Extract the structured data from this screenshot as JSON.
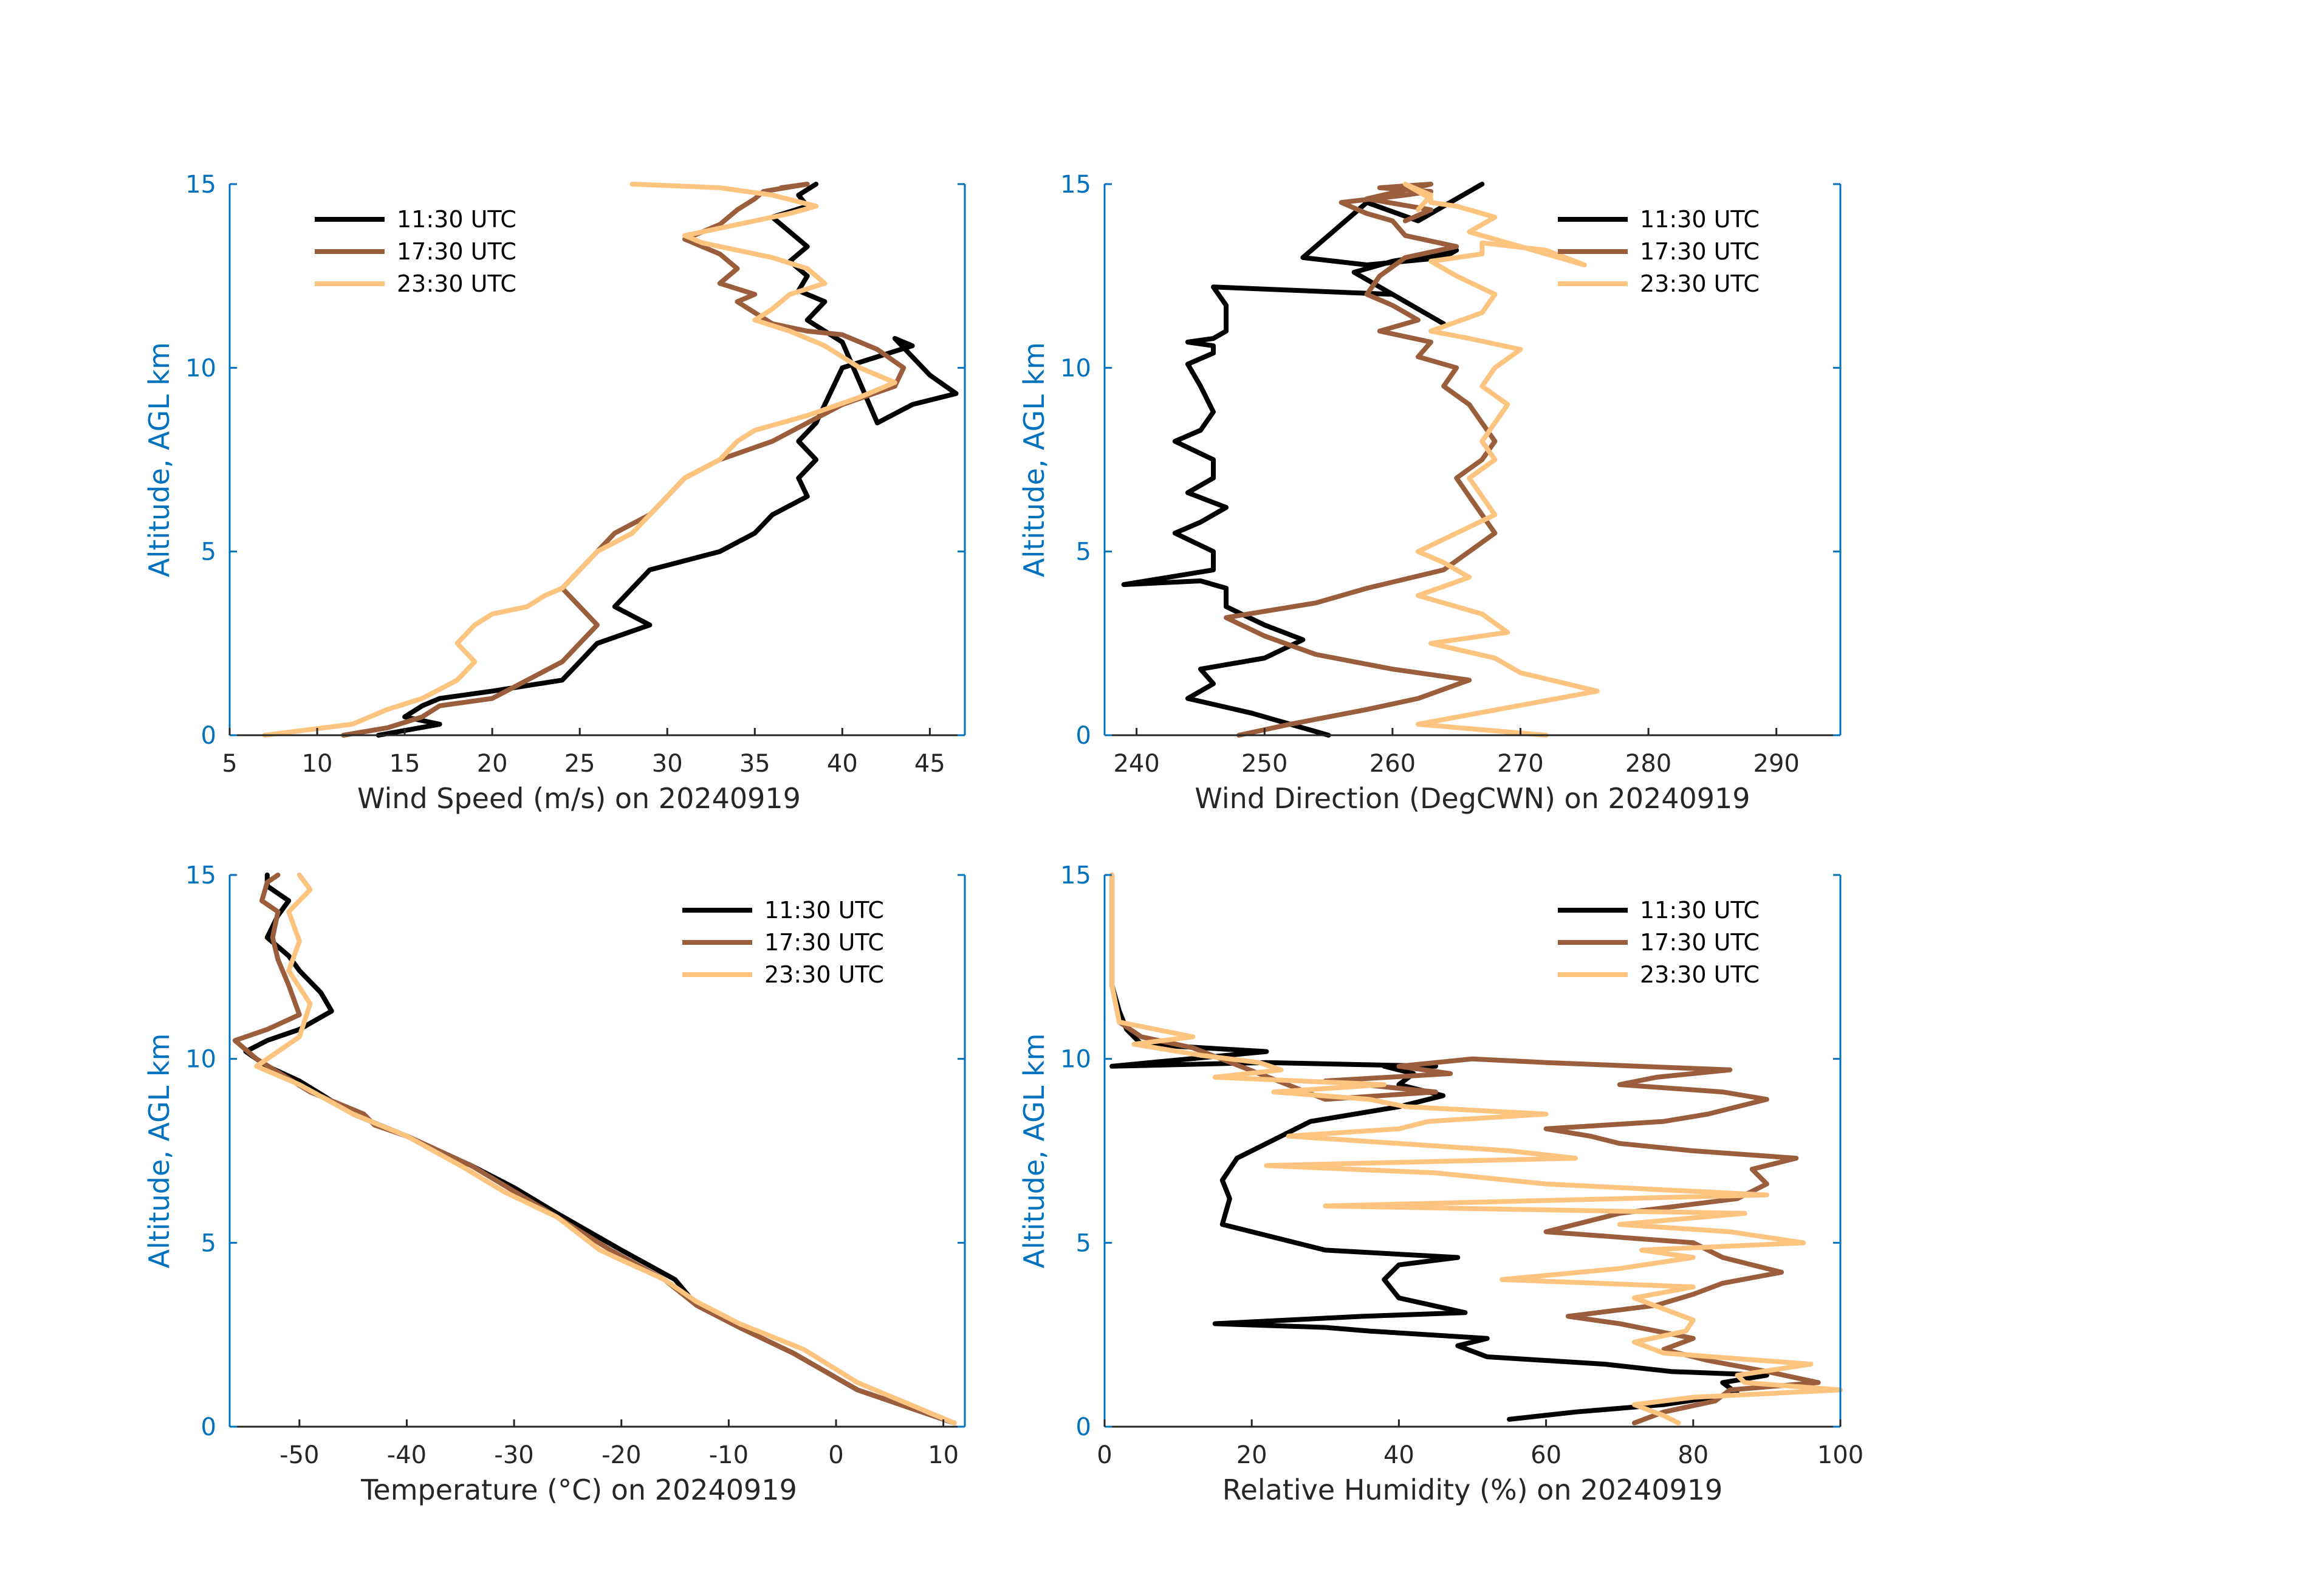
{
  "colors": {
    "s1": "#000000",
    "s2": "#9B5E3C",
    "s3": "#FCC47F",
    "axis": "#0072BD",
    "text": "#262626"
  },
  "chart_data": [
    {
      "type": "line",
      "title": "",
      "xlabel": "Wind Speed (m/s) on 20240919",
      "ylabel": "Altitude, AGL km",
      "xlim": [
        5,
        47
      ],
      "ylim": [
        0,
        15
      ],
      "xticks": [
        5,
        10,
        15,
        20,
        25,
        30,
        35,
        40,
        45
      ],
      "yticks": [
        0,
        5,
        10,
        15
      ],
      "legend": "top-left",
      "series": [
        {
          "name": "11:30 UTC",
          "x": [
            13.5,
            17,
            15,
            16,
            17,
            20,
            24,
            25,
            26,
            29,
            27,
            28,
            29,
            33,
            35,
            36,
            38,
            37.5,
            38.5,
            37.5,
            38.5,
            39,
            39.5,
            40,
            42,
            44,
            43,
            45,
            46.5,
            44,
            42,
            40,
            39,
            38,
            39,
            37.5,
            38,
            37,
            38,
            37,
            36,
            38,
            37.5,
            38.5
          ],
          "y": [
            0,
            0.3,
            0.5,
            0.8,
            1,
            1.2,
            1.5,
            2,
            2.5,
            3,
            3.5,
            4,
            4.5,
            5,
            5.5,
            6,
            6.5,
            7,
            7.5,
            8,
            8.5,
            9,
            9.5,
            10,
            10.3,
            10.6,
            10.8,
            9.8,
            9.3,
            9,
            8.5,
            10.7,
            11,
            11.3,
            11.8,
            12.1,
            12.5,
            12.9,
            13.3,
            13.7,
            14.1,
            14.4,
            14.7,
            15
          ]
        },
        {
          "name": "17:30 UTC",
          "x": [
            11.5,
            14,
            16,
            17,
            20,
            22,
            24,
            25,
            26,
            25,
            24,
            25,
            26,
            27,
            29,
            31,
            33,
            36,
            38,
            40,
            43,
            43.5,
            42,
            40,
            38,
            36,
            35,
            34,
            35,
            33,
            34,
            33,
            31,
            33,
            34,
            35,
            35.5,
            38,
            36.5
          ],
          "y": [
            0,
            0.2,
            0.5,
            0.8,
            1,
            1.5,
            2,
            2.5,
            3,
            3.5,
            4,
            4.5,
            5,
            5.5,
            6,
            7,
            7.5,
            8,
            8.5,
            9,
            9.5,
            10,
            10.5,
            10.9,
            11,
            11.2,
            11.5,
            11.8,
            12,
            12.3,
            12.7,
            13.1,
            13.5,
            13.9,
            14.3,
            14.6,
            14.8,
            15,
            14.9
          ]
        },
        {
          "name": "23:30 UTC",
          "x": [
            7,
            12,
            14,
            16,
            18,
            19,
            18,
            19,
            20,
            22,
            23,
            24,
            25,
            26,
            28,
            29,
            30,
            31,
            33,
            34,
            35,
            38,
            41,
            43,
            41,
            40,
            39,
            38,
            37,
            35,
            36,
            37,
            39,
            38,
            36,
            34,
            32,
            31,
            33,
            35,
            37,
            38.5,
            36,
            33,
            28
          ],
          "y": [
            0,
            0.3,
            0.7,
            1,
            1.5,
            2,
            2.5,
            3,
            3.3,
            3.5,
            3.8,
            4,
            4.5,
            5,
            5.5,
            6,
            6.5,
            7,
            7.5,
            8,
            8.3,
            8.7,
            9.2,
            9.6,
            10,
            10.3,
            10.6,
            10.8,
            11,
            11.3,
            11.6,
            12,
            12.3,
            12.7,
            13,
            13.2,
            13.4,
            13.6,
            13.8,
            14,
            14.2,
            14.4,
            14.7,
            14.9,
            15
          ]
        }
      ]
    },
    {
      "type": "line",
      "title": "",
      "xlabel": "Wind Direction (DegCWN) on 20240919",
      "ylabel": "Altitude, AGL km",
      "xlim": [
        237.5,
        295
      ],
      "ylim": [
        0,
        15
      ],
      "xticks": [
        240,
        250,
        260,
        270,
        280,
        290
      ],
      "yticks": [
        0,
        5,
        10,
        15
      ],
      "legend": "top-right",
      "series": [
        {
          "name": "11:30 UTC",
          "x": [
            255,
            252,
            249,
            244,
            246,
            245,
            250,
            253,
            250,
            247,
            247,
            245,
            239,
            246,
            246,
            243,
            245,
            247,
            244,
            246,
            246,
            243,
            245,
            246,
            245,
            244,
            246,
            246,
            244,
            246,
            247,
            247,
            246,
            260,
            264,
            257,
            260,
            265,
            264,
            258,
            253,
            258,
            262,
            267
          ],
          "y": [
            0,
            0.3,
            0.6,
            1,
            1.4,
            1.8,
            2.1,
            2.6,
            3,
            3.5,
            4,
            4.2,
            4.1,
            4.5,
            5,
            5.5,
            5.8,
            6.2,
            6.6,
            7,
            7.5,
            8,
            8.3,
            8.8,
            9.5,
            10.1,
            10.4,
            10.6,
            10.7,
            10.8,
            11,
            11.7,
            12.2,
            12,
            11.2,
            12.6,
            12.9,
            13.2,
            13,
            12.8,
            13,
            14.5,
            14,
            15
          ]
        },
        {
          "name": "17:30 UTC",
          "x": [
            248,
            252,
            258,
            262,
            266,
            260,
            254,
            250,
            247,
            254,
            258,
            264,
            266,
            268,
            267,
            266,
            265,
            267,
            268,
            267,
            266,
            264,
            265,
            262,
            263,
            259,
            262,
            260,
            258,
            259,
            261,
            265,
            261,
            260,
            258,
            256,
            261,
            263,
            259,
            263,
            258,
            263,
            261
          ],
          "y": [
            0,
            0.3,
            0.7,
            1,
            1.5,
            1.8,
            2.2,
            2.7,
            3.2,
            3.6,
            4,
            4.5,
            5,
            5.5,
            6,
            6.5,
            7,
            7.5,
            8,
            8.5,
            9,
            9.5,
            10,
            10.3,
            10.7,
            11,
            11.3,
            11.7,
            12,
            12.5,
            13,
            13.3,
            13.6,
            14,
            14.2,
            14.5,
            14.7,
            14.8,
            14.9,
            15,
            14.6,
            14.3,
            14
          ]
        },
        {
          "name": "23:30 UTC",
          "x": [
            272,
            262,
            276,
            270,
            268,
            263,
            269,
            267,
            262,
            266,
            264,
            262,
            265,
            268,
            267,
            266,
            268,
            267,
            268,
            269,
            267,
            268,
            270,
            266,
            263,
            267,
            268,
            265,
            263,
            267,
            267,
            272,
            275,
            266,
            268,
            265,
            263,
            263,
            262,
            261,
            263,
            262
          ],
          "y": [
            0,
            0.3,
            1.2,
            1.7,
            2.1,
            2.5,
            2.8,
            3.3,
            3.8,
            4.3,
            4.7,
            5,
            5.5,
            6,
            6.5,
            7,
            7.5,
            8,
            8.5,
            9,
            9.5,
            10,
            10.5,
            10.8,
            11,
            11.5,
            12,
            12.5,
            12.9,
            13.1,
            13.4,
            13.2,
            12.8,
            13.7,
            14.1,
            14.4,
            14.5,
            14.6,
            14.8,
            15,
            14.7,
            14.3
          ]
        }
      ]
    },
    {
      "type": "line",
      "title": "",
      "xlabel": "Temperature (°C) on 20240919",
      "ylabel": "Altitude, AGL km",
      "xlim": [
        -56.5,
        12
      ],
      "ylim": [
        0,
        15
      ],
      "xticks": [
        -50,
        -40,
        -30,
        -20,
        -10,
        0,
        10
      ],
      "yticks": [
        0,
        5,
        10,
        15
      ],
      "legend": "top-right",
      "series": [
        {
          "name": "11:30 UTC",
          "x": [
            11,
            2,
            -4,
            -9,
            -13,
            -15,
            -20,
            -26,
            -30,
            -34,
            -40,
            -45,
            -50,
            -53,
            -55,
            -53,
            -50,
            -47,
            -48,
            -50,
            -51,
            -53,
            -52,
            -51,
            -53,
            -53
          ],
          "y": [
            0.1,
            1,
            2,
            2.7,
            3.3,
            4,
            4.8,
            5.8,
            6.5,
            7.1,
            7.9,
            8.5,
            9.4,
            9.8,
            10.2,
            10.5,
            10.8,
            11.3,
            11.8,
            12.4,
            12.8,
            13.3,
            13.9,
            14.3,
            14.7,
            15
          ]
        },
        {
          "name": "17:30 UTC",
          "x": [
            11,
            2,
            -4,
            -9,
            -13,
            -16,
            -21,
            -26,
            -30,
            -34,
            -40,
            -43,
            -44,
            -49,
            -54,
            -56,
            -53,
            -50,
            -51,
            -52,
            -52.5,
            -52,
            -53.5,
            -53,
            -52
          ],
          "y": [
            0.1,
            1,
            2,
            2.7,
            3.3,
            4,
            4.8,
            5.7,
            6.4,
            7.1,
            7.9,
            8.2,
            8.5,
            9.1,
            10,
            10.5,
            10.8,
            11.2,
            12,
            12.7,
            13.3,
            14,
            14.3,
            14.8,
            15
          ]
        },
        {
          "name": "23:30 UTC",
          "x": [
            11,
            2,
            -3,
            -9,
            -13,
            -16,
            -22,
            -26,
            -31,
            -35,
            -40,
            -45,
            -50,
            -54,
            -50,
            -49,
            -51,
            -50,
            -51,
            -49,
            -50
          ],
          "y": [
            0.1,
            1.2,
            2.1,
            2.8,
            3.4,
            4,
            4.8,
            5.7,
            6.4,
            7.1,
            7.9,
            8.5,
            9.3,
            9.8,
            10.6,
            11.5,
            12.4,
            13.2,
            14,
            14.6,
            15
          ]
        }
      ]
    },
    {
      "type": "line",
      "title": "",
      "xlabel": "Relative Humidity (%) on 20240919",
      "ylabel": "Altitude, AGL km",
      "xlim": [
        0,
        100
      ],
      "ylim": [
        0,
        15
      ],
      "xticks": [
        0,
        20,
        40,
        60,
        80,
        100
      ],
      "yticks": [
        0,
        5,
        10,
        15
      ],
      "legend": "top-right",
      "series": [
        {
          "name": "11:30 UTC",
          "x": [
            55,
            64,
            76,
            86,
            84,
            90,
            77,
            68,
            52,
            48,
            52,
            36,
            30,
            15,
            35,
            49,
            40,
            38,
            40,
            48,
            30,
            16,
            17,
            16,
            18,
            22,
            28,
            40,
            46,
            40,
            42,
            38,
            45,
            22,
            1,
            22,
            5,
            3,
            2,
            1,
            1,
            1
          ],
          "y": [
            0.2,
            0.4,
            0.6,
            0.9,
            1.2,
            1.4,
            1.5,
            1.7,
            1.9,
            2.2,
            2.4,
            2.6,
            2.7,
            2.8,
            3,
            3.1,
            3.5,
            4,
            4.4,
            4.6,
            4.8,
            5.5,
            6.2,
            6.7,
            7.3,
            7.7,
            8.3,
            8.7,
            9,
            9.3,
            9.6,
            9.8,
            9.8,
            9.9,
            9.8,
            10.2,
            10.4,
            10.8,
            11.3,
            12,
            13.5,
            15
          ]
        },
        {
          "name": "17:30 UTC",
          "x": [
            72,
            76,
            83,
            85,
            97,
            90,
            82,
            76,
            80,
            70,
            63,
            75,
            80,
            84,
            92,
            84,
            80,
            60,
            70,
            86,
            90,
            88,
            94,
            80,
            70,
            66,
            60,
            76,
            82,
            86,
            90,
            84,
            70,
            75,
            85,
            60,
            50,
            40,
            47,
            30,
            45,
            30,
            12,
            5,
            2,
            1,
            1
          ],
          "y": [
            0.1,
            0.4,
            0.7,
            1,
            1.2,
            1.5,
            1.8,
            2.1,
            2.4,
            2.8,
            3,
            3.3,
            3.6,
            3.9,
            4.2,
            4.6,
            5,
            5.3,
            5.8,
            6.2,
            6.6,
            7,
            7.3,
            7.5,
            7.7,
            7.9,
            8.1,
            8.3,
            8.5,
            8.7,
            8.9,
            9.1,
            9.3,
            9.5,
            9.7,
            9.9,
            10,
            9.8,
            9.6,
            9.4,
            9.1,
            8.9,
            10.3,
            10.6,
            11,
            12,
            15
          ]
        },
        {
          "name": "23:30 UTC",
          "x": [
            78,
            76,
            72,
            80,
            100,
            87,
            86,
            96,
            76,
            72,
            79,
            80,
            76,
            72,
            80,
            54,
            70,
            80,
            73,
            95,
            85,
            70,
            87,
            30,
            90,
            60,
            45,
            22,
            64,
            55,
            40,
            25,
            40,
            44,
            60,
            41,
            36,
            23,
            38,
            15,
            24,
            21,
            13,
            4,
            12,
            2,
            1,
            1
          ],
          "y": [
            0.1,
            0.3,
            0.6,
            0.8,
            1,
            1.2,
            1.4,
            1.7,
            2,
            2.3,
            2.6,
            2.9,
            3.2,
            3.5,
            3.8,
            4,
            4.3,
            4.6,
            4.8,
            5,
            5.3,
            5.5,
            5.8,
            6,
            6.3,
            6.6,
            6.9,
            7.1,
            7.3,
            7.5,
            7.7,
            7.9,
            8.1,
            8.3,
            8.5,
            8.7,
            8.9,
            9.1,
            9.3,
            9.5,
            9.7,
            9.9,
            10.1,
            10.4,
            10.6,
            11,
            12,
            15
          ]
        }
      ]
    }
  ]
}
